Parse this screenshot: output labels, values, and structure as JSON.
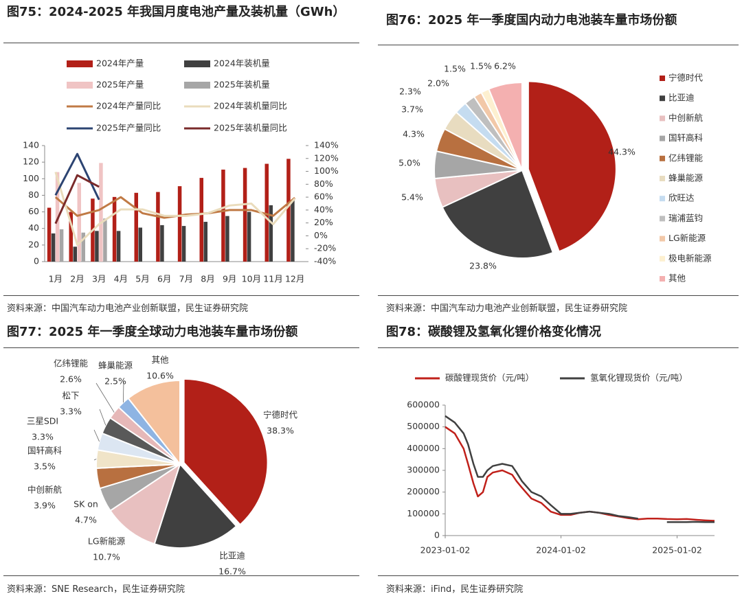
{
  "chart_data": [
    {
      "type": "combo",
      "title": "图75：2024-2025 年我国月度电池产量及装机量（GWh）",
      "source": "资料来源：中国汽车动力电池产业创新联盟，民生证券研究院",
      "categories": [
        "1月",
        "2月",
        "3月",
        "4月",
        "5月",
        "6月",
        "7月",
        "8月",
        "9月",
        "10月",
        "11月",
        "12月"
      ],
      "series": [
        {
          "name": "2024年产量",
          "type": "bar",
          "color": "#b22018",
          "values": [
            65,
            60,
            76,
            78,
            83,
            84,
            91,
            101,
            111,
            113,
            118,
            124
          ]
        },
        {
          "name": "2024年装机量",
          "type": "bar",
          "color": "#404040",
          "values": [
            34,
            18,
            37,
            37,
            41,
            44,
            43,
            48,
            55,
            60,
            68,
            74
          ]
        },
        {
          "name": "2025年产量",
          "type": "bar",
          "color": "#f0c4c4",
          "values": [
            108,
            95,
            119,
            null,
            null,
            null,
            null,
            null,
            null,
            null,
            null,
            null
          ]
        },
        {
          "name": "2025年装机量",
          "type": "bar",
          "color": "#a6a6a6",
          "values": [
            39,
            35,
            52,
            null,
            null,
            null,
            null,
            null,
            null,
            null,
            null,
            null
          ]
        },
        {
          "name": "2024年产量同比",
          "type": "line",
          "axis": "y2",
          "color": "#c07a45",
          "values": [
            60,
            31,
            40,
            60,
            35,
            28,
            33,
            35,
            40,
            40,
            31,
            59
          ]
        },
        {
          "name": "2024年装机量同比",
          "type": "line",
          "axis": "y2",
          "color": "#eadcbc",
          "values": [
            99,
            -14,
            18,
            41,
            41,
            31,
            31,
            35,
            47,
            50,
            18,
            58
          ]
        },
        {
          "name": "2025年产量同比",
          "type": "line",
          "axis": "y2",
          "color": "#2c4472",
          "values": [
            63,
            127,
            56,
            null,
            null,
            null,
            null,
            null,
            null,
            null,
            null,
            null
          ]
        },
        {
          "name": "2025年装机量同比",
          "type": "line",
          "axis": "y2",
          "color": "#7a2a2a",
          "values": [
            19,
            94,
            76,
            null,
            null,
            null,
            null,
            null,
            null,
            null,
            null,
            null
          ]
        }
      ],
      "ylim": [
        0,
        140
      ],
      "yticks": [
        0,
        20,
        40,
        60,
        80,
        100,
        120,
        140
      ],
      "y2lim": [
        -40,
        140
      ],
      "y2ticks": [
        {
          "value": -40,
          "label": "-40%"
        },
        {
          "value": -20,
          "label": "-20%"
        },
        {
          "value": 0,
          "label": "0%"
        },
        {
          "value": 20,
          "label": "20%"
        },
        {
          "value": 40,
          "label": "40%"
        },
        {
          "value": 60,
          "label": "60%"
        },
        {
          "value": 80,
          "label": "80%"
        },
        {
          "value": 100,
          "label": "100%"
        },
        {
          "value": 120,
          "label": "120%"
        },
        {
          "value": 140,
          "label": "140%"
        }
      ]
    },
    {
      "type": "pie",
      "title": "图76：2025 年一季度国内动力电池装车量市场份额",
      "source": "资料来源：中国汽车动力电池产业创新联盟，民生证券研究院",
      "categories": [
        "宁德时代",
        "比亚迪",
        "中创新航",
        "国轩高科",
        "亿纬锂能",
        "蜂巢能源",
        "欣旺达",
        "瑞浦蓝钧",
        "LG新能源",
        "极电新能源",
        "其他"
      ],
      "values": [
        44.3,
        23.8,
        5.4,
        5.0,
        4.3,
        3.7,
        2.3,
        2.0,
        1.5,
        1.5,
        6.2
      ],
      "value_labels": [
        "44.3%",
        "23.8%",
        "5.4%",
        "5.0%",
        "4.3%",
        "3.7%",
        "2.3%",
        "2.0%",
        "1.5%",
        "1.5%",
        "6.2%"
      ],
      "colors": [
        "#b22018",
        "#404040",
        "#e8c0c0",
        "#a6a6a6",
        "#b87040",
        "#e8dcc0",
        "#c5dcf0",
        "#bfbfbf",
        "#f2c8a8",
        "#fdf0d0",
        "#f4b0b0"
      ],
      "legend": "right"
    },
    {
      "type": "pie",
      "title": "图77：2025 年一季度全球动力电池装车量市场份额",
      "source": "资料来源：SNE Research，民生证券研究院",
      "categories": [
        "宁德时代",
        "比亚迪",
        "LG新能源",
        "SK on",
        "中创新航",
        "国轩高科",
        "三星SDI",
        "松下",
        "亿纬锂能",
        "蜂巢能源",
        "其他"
      ],
      "values": [
        38.3,
        16.7,
        10.7,
        4.7,
        3.9,
        3.5,
        3.3,
        3.3,
        2.6,
        2.5,
        10.6
      ],
      "value_labels": [
        "38.3%",
        "16.7%",
        "10.7%",
        "4.7%",
        "3.9%",
        "3.5%",
        "3.3%",
        "3.3%",
        "2.6%",
        "2.5%",
        "10.6%"
      ],
      "colors": [
        "#b22018",
        "#404040",
        "#e8c0c0",
        "#a6a6a6",
        "#b87040",
        "#f0e4c8",
        "#dce6f2",
        "#595959",
        "#e6b8b8",
        "#8eb4e3",
        "#f4c09c"
      ]
    },
    {
      "type": "line",
      "title": "图78：碳酸锂及氢氧化锂价格变化情况",
      "source": "资料来源：iFind，民生证券研究院",
      "x": [
        "2023-01-02",
        "2023-02-01",
        "2023-03-01",
        "2023-03-15",
        "2023-04-01",
        "2023-04-15",
        "2023-05-01",
        "2023-05-15",
        "2023-06-01",
        "2023-07-01",
        "2023-08-01",
        "2023-08-15",
        "2023-09-01",
        "2023-10-01",
        "2023-11-01",
        "2023-12-01",
        "2024-01-02",
        "2024-02-01",
        "2024-03-01",
        "2024-04-01",
        "2024-05-01",
        "2024-06-01",
        "2024-07-01",
        "2024-08-01",
        "2024-09-01",
        "2024-10-01",
        "2024-11-01",
        "2024-12-01",
        "2025-01-02",
        "2025-02-01",
        "2025-03-01",
        "2025-04-01",
        "2025-04-30"
      ],
      "series": [
        {
          "name": "碳酸锂现货价（元/吨）",
          "color": "#c0201a",
          "values": [
            500000,
            470000,
            400000,
            330000,
            240000,
            180000,
            200000,
            270000,
            290000,
            300000,
            280000,
            250000,
            220000,
            170000,
            150000,
            110000,
            95000,
            95000,
            105000,
            110000,
            105000,
            95000,
            88000,
            80000,
            75000,
            78000,
            78000,
            76000,
            75000,
            76000,
            73000,
            70000,
            68000
          ]
        },
        {
          "name": "氢氧化锂现货价（元/吨）",
          "color": "#404040",
          "values": [
            550000,
            520000,
            470000,
            420000,
            330000,
            270000,
            270000,
            300000,
            320000,
            330000,
            320000,
            290000,
            250000,
            200000,
            180000,
            140000,
            100000,
            100000,
            105000,
            110000,
            105000,
            100000,
            90000,
            85000,
            78000,
            null,
            null,
            62000,
            62000,
            62000,
            63000,
            62000,
            62000
          ]
        }
      ],
      "xlim": [
        "2023-01-02",
        "2025-04-30"
      ],
      "xticks": [
        "2023-01-02",
        "2024-01-02",
        "2025-01-02"
      ],
      "ylim": [
        0,
        600000
      ],
      "yticks": [
        0,
        100000,
        200000,
        300000,
        400000,
        500000,
        600000
      ],
      "legend": "top"
    }
  ]
}
